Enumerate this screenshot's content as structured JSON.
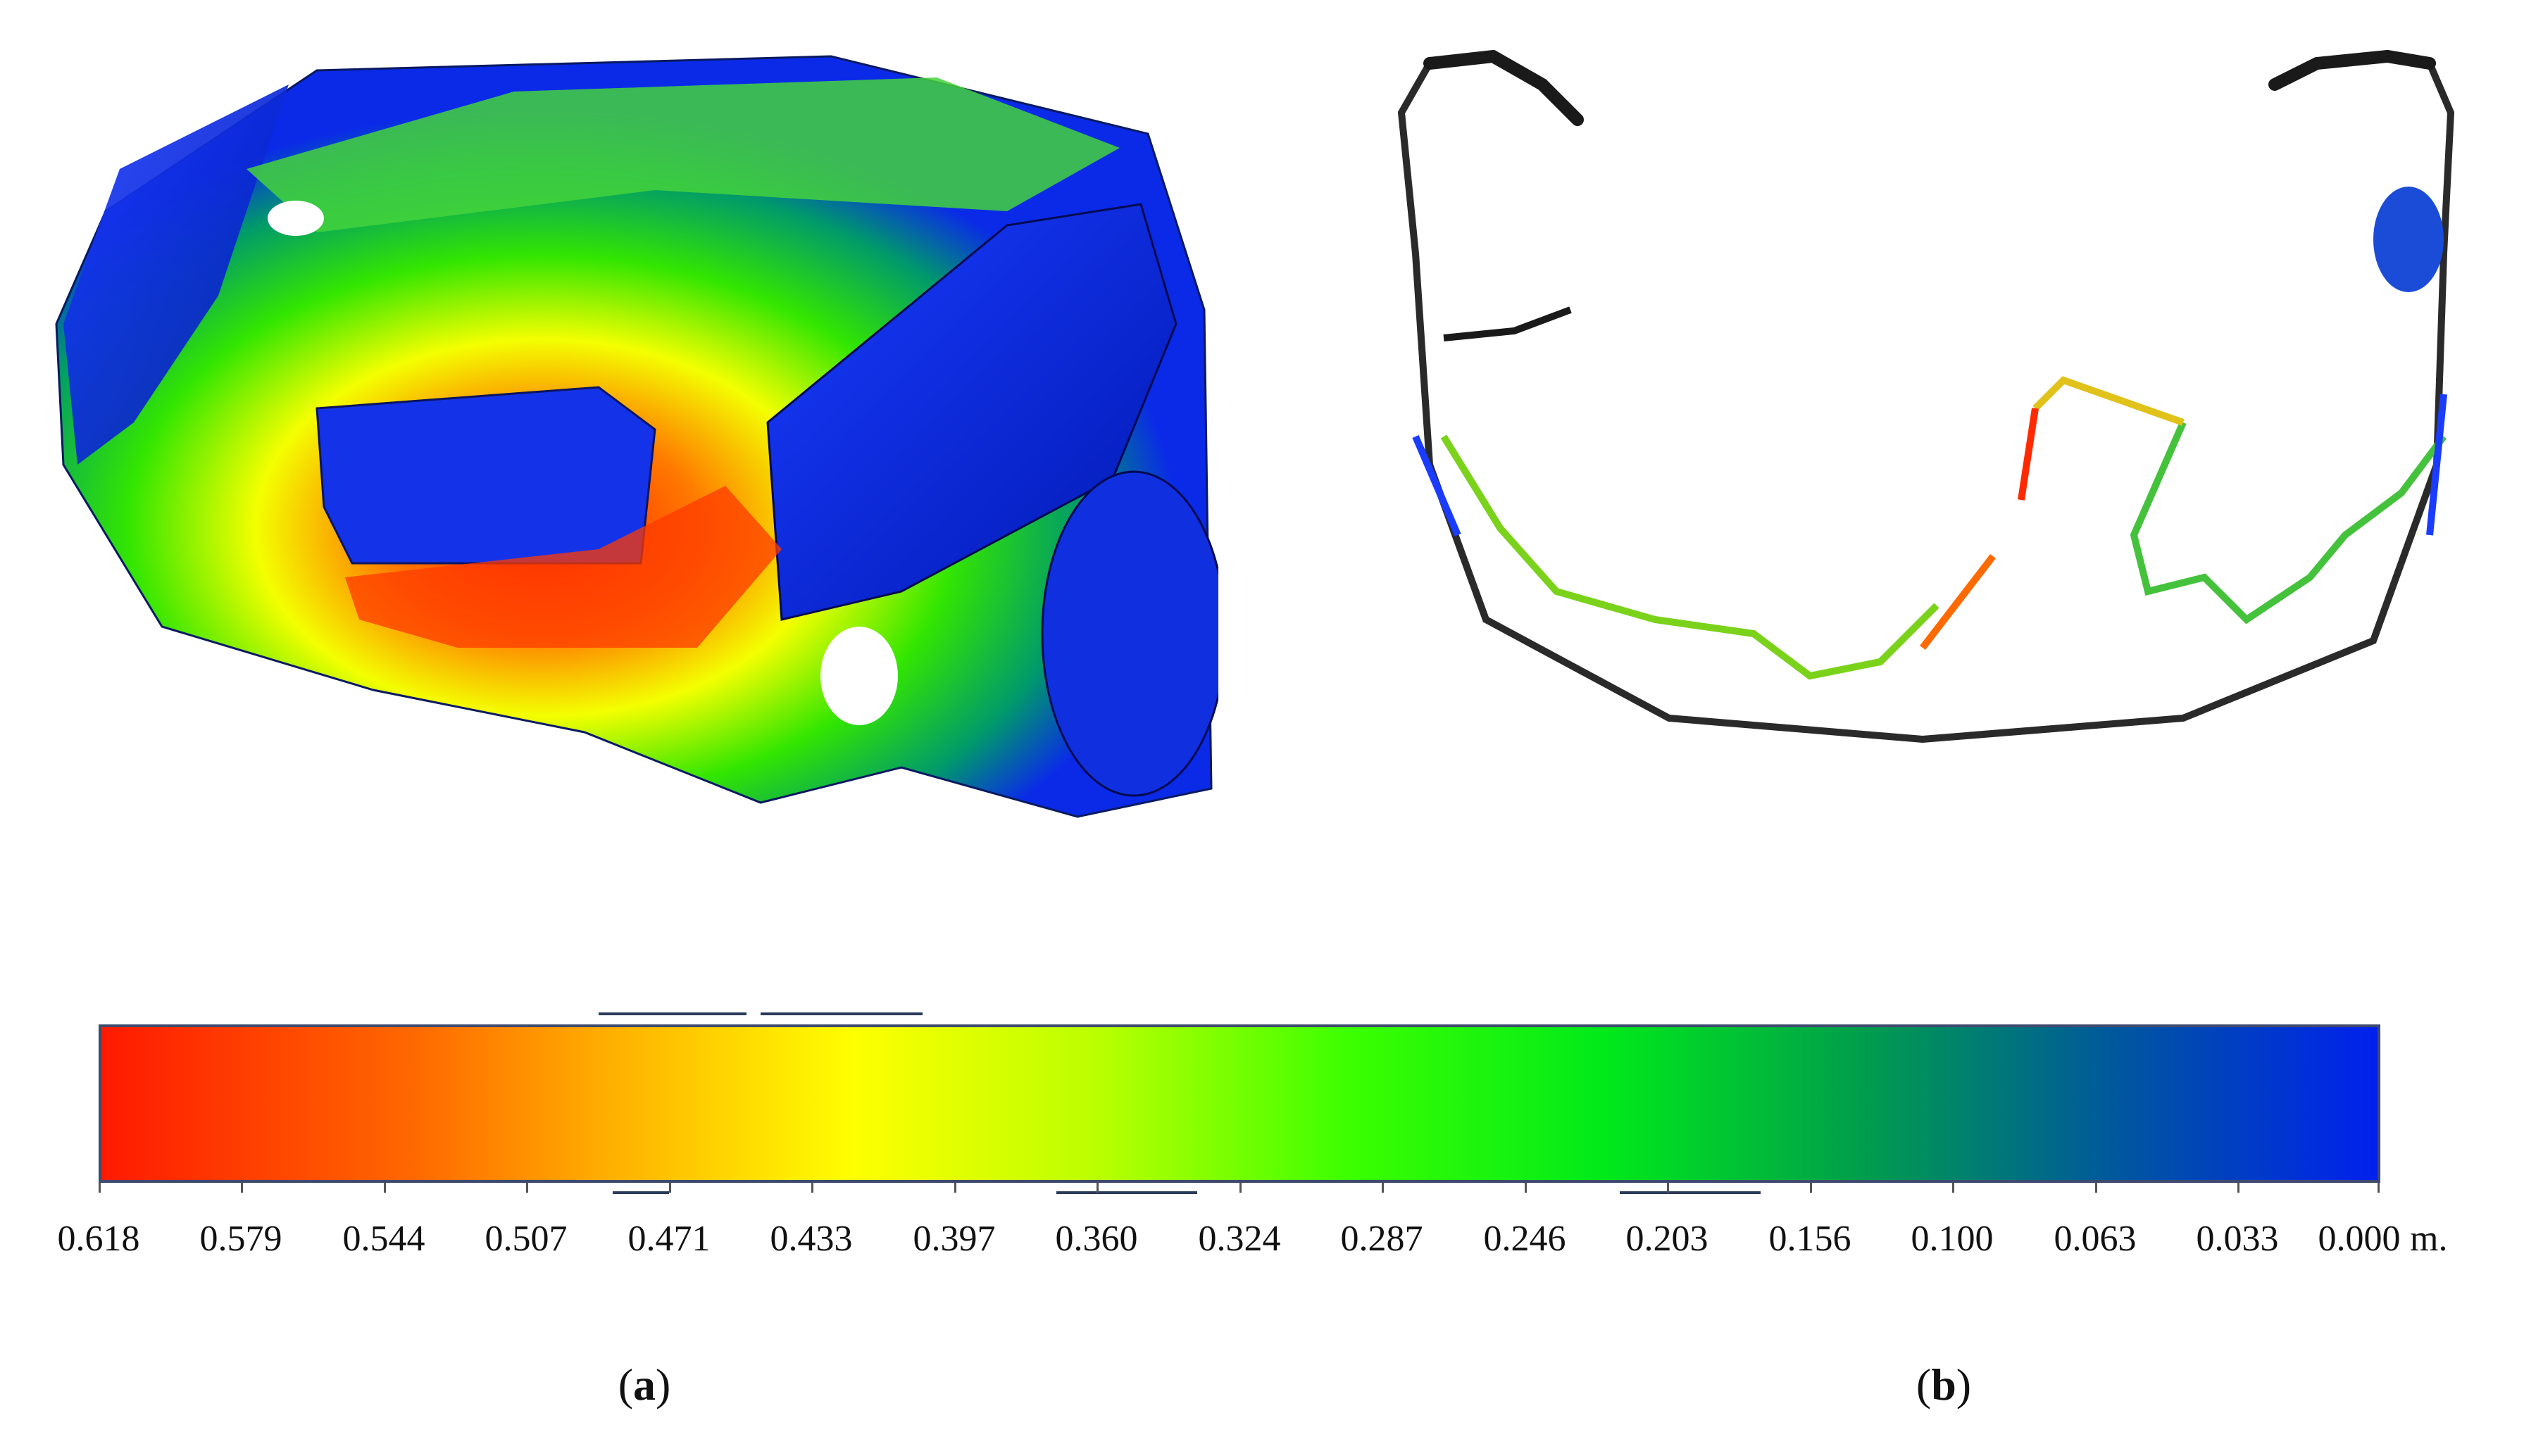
{
  "figure": {
    "panels": [
      {
        "id": "a",
        "letter": "a"
      },
      {
        "id": "b",
        "letter": "b"
      }
    ],
    "colorbar": {
      "unit": "m.",
      "labels": [
        "0.618",
        "0.579",
        "0.544",
        "0.507",
        "0.471",
        "0.433",
        "0.397",
        "0.360",
        "0.324",
        "0.287",
        "0.246",
        "0.203",
        "0.156",
        "0.100",
        "0.063",
        "0.033",
        "0.000"
      ],
      "colors": {
        "max": "#ff1a00",
        "mid_high": "#ffff00",
        "mid": "#3aff00",
        "mid_low": "#00a04a",
        "min": "#0020ee"
      }
    }
  }
}
